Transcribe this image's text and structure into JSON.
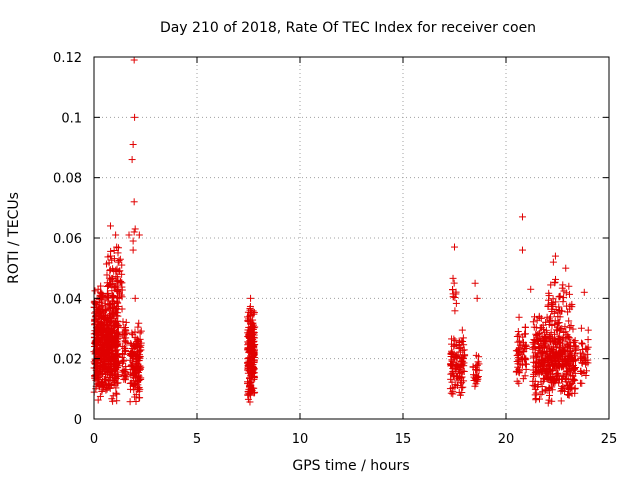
{
  "chart_data": {
    "type": "scatter",
    "title": "Day 210 of 2018, Rate Of TEC Index for receiver coen",
    "xlabel": "GPS time / hours",
    "ylabel": "ROTI / TECUs",
    "xlim": [
      0,
      25
    ],
    "ylim": [
      0,
      0.12
    ],
    "xticks": [
      0,
      5,
      10,
      15,
      20,
      25
    ],
    "yticks": [
      0,
      0.02,
      0.04,
      0.06,
      0.08,
      0.1,
      0.12
    ],
    "xtick_labels": [
      "0",
      "5",
      "10",
      "15",
      "20",
      "25"
    ],
    "ytick_labels": [
      "0",
      "0.02",
      "0.04",
      "0.06",
      "0.08",
      "0.1",
      "0.12"
    ],
    "grid": true,
    "marker": "plus",
    "color": "#e00000",
    "outliers": [
      [
        1.95,
        0.119
      ],
      [
        1.97,
        0.1
      ],
      [
        1.9,
        0.091
      ],
      [
        1.85,
        0.086
      ],
      [
        1.95,
        0.072
      ],
      [
        2.0,
        0.063
      ],
      [
        1.95,
        0.062
      ],
      [
        2.2,
        0.061
      ],
      [
        1.7,
        0.061
      ],
      [
        1.9,
        0.059
      ],
      [
        1.9,
        0.056
      ],
      [
        0.8,
        0.064
      ],
      [
        1.05,
        0.061
      ],
      [
        1.1,
        0.057
      ],
      [
        20.8,
        0.067
      ],
      [
        20.8,
        0.056
      ],
      [
        17.5,
        0.057
      ],
      [
        22.4,
        0.054
      ],
      [
        22.3,
        0.052
      ],
      [
        18.5,
        0.045
      ],
      [
        18.6,
        0.04
      ],
      [
        21.2,
        0.043
      ],
      [
        22.9,
        0.05
      ],
      [
        23.8,
        0.042
      ],
      [
        2.0,
        0.04
      ],
      [
        0.2,
        0.043
      ],
      [
        0.3,
        0.041
      ],
      [
        7.6,
        0.04
      ],
      [
        23.05,
        0.044
      ]
    ],
    "clusters": [
      {
        "x": [
          0.0,
          1.2
        ],
        "y": [
          0.005,
          0.045
        ],
        "n": 620
      },
      {
        "x": [
          0.6,
          1.4
        ],
        "y": [
          0.035,
          0.057
        ],
        "n": 70
      },
      {
        "x": [
          1.35,
          1.6
        ],
        "y": [
          0.01,
          0.035
        ],
        "n": 40
      },
      {
        "x": [
          1.75,
          2.3
        ],
        "y": [
          0.005,
          0.032
        ],
        "n": 140
      },
      {
        "x": [
          7.45,
          7.8
        ],
        "y": [
          0.004,
          0.039
        ],
        "n": 220
      },
      {
        "x": [
          17.3,
          18.0
        ],
        "y": [
          0.006,
          0.03
        ],
        "n": 110
      },
      {
        "x": [
          17.4,
          17.6
        ],
        "y": [
          0.03,
          0.05
        ],
        "n": 12
      },
      {
        "x": [
          18.4,
          18.7
        ],
        "y": [
          0.01,
          0.023
        ],
        "n": 28
      },
      {
        "x": [
          20.5,
          21.0
        ],
        "y": [
          0.007,
          0.035
        ],
        "n": 60
      },
      {
        "x": [
          21.3,
          23.4
        ],
        "y": [
          0.005,
          0.035
        ],
        "n": 460
      },
      {
        "x": [
          22.0,
          23.2
        ],
        "y": [
          0.03,
          0.048
        ],
        "n": 45
      },
      {
        "x": [
          23.6,
          24.0
        ],
        "y": [
          0.008,
          0.035
        ],
        "n": 35
      }
    ]
  }
}
